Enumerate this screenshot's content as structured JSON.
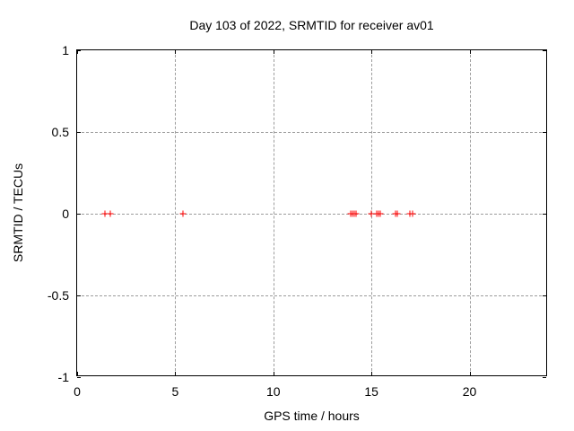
{
  "window": {
    "background": "#ffffff"
  },
  "chart_data": {
    "type": "scatter",
    "title": "Day 103 of 2022, SRMTID for receiver av01",
    "xlabel": "GPS time / hours",
    "ylabel": "SRMTID / TECUs",
    "xlim": [
      0,
      24
    ],
    "ylim": [
      -1,
      1
    ],
    "x_ticks": [
      0,
      5,
      10,
      15,
      20
    ],
    "x_tick_labels": [
      "0",
      "5",
      "10",
      "15",
      "20"
    ],
    "y_ticks": [
      1,
      0.5,
      0,
      -0.5,
      -1
    ],
    "y_tick_labels": [
      "1",
      "0.5",
      "0",
      "-0.5",
      "-1"
    ],
    "grid": "dashed",
    "grid_color": "#9c9c9c",
    "axis_color": "#000000",
    "legend": "none",
    "series": [
      {
        "name": "SRMTID",
        "marker": "plus",
        "color": "#ff0000",
        "points": [
          {
            "x": 1.42,
            "y": 0
          },
          {
            "x": 1.69,
            "y": 0
          },
          {
            "x": 5.4,
            "y": 0
          },
          {
            "x": 13.95,
            "y": 0
          },
          {
            "x": 14.03,
            "y": 0
          },
          {
            "x": 14.12,
            "y": 0
          },
          {
            "x": 14.22,
            "y": 0
          },
          {
            "x": 15.0,
            "y": 0
          },
          {
            "x": 15.25,
            "y": 0
          },
          {
            "x": 15.35,
            "y": 0
          },
          {
            "x": 15.45,
            "y": 0
          },
          {
            "x": 16.25,
            "y": 0
          },
          {
            "x": 16.32,
            "y": 0
          },
          {
            "x": 16.95,
            "y": 0
          },
          {
            "x": 17.1,
            "y": 0
          }
        ]
      }
    ]
  }
}
